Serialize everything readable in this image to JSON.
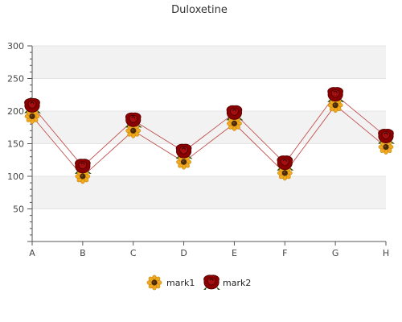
{
  "chart_data": {
    "type": "line",
    "title": "Duloxetine",
    "xlabel": "",
    "ylabel": "",
    "categories": [
      "A",
      "B",
      "C",
      "D",
      "E",
      "F",
      "G",
      "H"
    ],
    "ylim": [
      0,
      300
    ],
    "yticks": [
      50,
      100,
      150,
      200,
      250,
      300
    ],
    "grid": true,
    "band_fill": "#f2f2f2",
    "line_color": "#c0504d",
    "legend_position": "bottom",
    "series": [
      {
        "name": "mark1",
        "marker": "sunflower-icon",
        "color": "#f0a81c",
        "values": [
          192,
          100,
          170,
          122,
          181,
          105,
          209,
          145
        ]
      },
      {
        "name": "mark2",
        "marker": "rose-icon",
        "color": "#8b0000",
        "values": [
          208,
          115,
          186,
          138,
          197,
          120,
          225,
          161
        ]
      }
    ]
  }
}
